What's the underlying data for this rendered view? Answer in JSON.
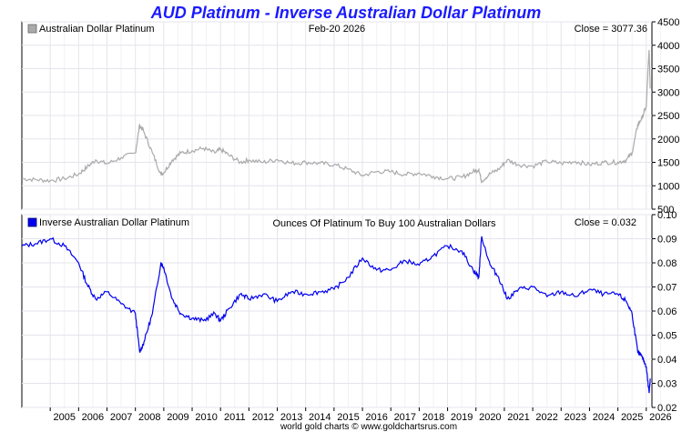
{
  "header": {
    "title": "AUD Platinum - Inverse Australian Dollar Platinum",
    "title_color": "#1a1aff"
  },
  "footer": {
    "credit": "world gold charts © www.goldchartsrus.com"
  },
  "chart_data": [
    {
      "type": "line",
      "legend": "Australian Dollar Platinum",
      "legend_placement": "top-left",
      "date_label": "Feb-20  2026",
      "close_label": "Close = 3077.36",
      "color": "#aaaaaa",
      "grid": true,
      "y_axis_side": "right",
      "ylim": [
        500,
        4500
      ],
      "y_ticks": [
        500,
        1000,
        1500,
        2000,
        2500,
        3000,
        3500,
        4000,
        4500
      ],
      "x_ticks": [
        "2005",
        "2006",
        "2007",
        "2008",
        "2009",
        "2010",
        "2011",
        "2012",
        "2013",
        "2014",
        "2015",
        "2016",
        "2017",
        "2018",
        "2019",
        "2020",
        "2021",
        "2022",
        "2023",
        "2024",
        "2025",
        "2026"
      ],
      "series": [
        {
          "x": [
            2004.0,
            2004.5,
            2005.0,
            2005.5,
            2006.0,
            2006.3,
            2006.6,
            2007.0,
            2007.5,
            2008.0,
            2008.15,
            2008.3,
            2008.6,
            2008.9,
            2009.0,
            2009.3,
            2009.6,
            2010.0,
            2010.4,
            2010.8,
            2011.0,
            2011.3,
            2011.7,
            2012.0,
            2012.5,
            2013.0,
            2013.5,
            2014.0,
            2014.5,
            2015.0,
            2015.5,
            2016.0,
            2016.5,
            2017.0,
            2017.5,
            2018.0,
            2018.5,
            2019.0,
            2019.5,
            2019.9,
            2020.1,
            2020.2,
            2020.5,
            2020.8,
            2021.1,
            2021.5,
            2022.0,
            2022.5,
            2023.0,
            2023.5,
            2024.0,
            2024.5,
            2025.0,
            2025.3,
            2025.5,
            2025.7,
            2025.85,
            2026.0,
            2026.1,
            2026.14
          ],
          "y": [
            1150,
            1130,
            1110,
            1150,
            1250,
            1400,
            1550,
            1470,
            1600,
            1700,
            2300,
            2150,
            1700,
            1250,
            1280,
            1550,
            1700,
            1750,
            1800,
            1700,
            1780,
            1650,
            1500,
            1550,
            1500,
            1560,
            1480,
            1500,
            1480,
            1450,
            1350,
            1220,
            1300,
            1300,
            1240,
            1270,
            1200,
            1150,
            1180,
            1300,
            1350,
            1100,
            1260,
            1350,
            1550,
            1450,
            1420,
            1520,
            1480,
            1520,
            1450,
            1500,
            1500,
            1550,
            1700,
            2300,
            2450,
            2700,
            3900,
            3077
          ]
        }
      ]
    },
    {
      "type": "line",
      "legend": "Inverse Australian Dollar Platinum",
      "legend_placement": "top-left",
      "title": "Ounces Of Platinum To Buy 100 Australian Dollars",
      "close_label": "Close = 0.032",
      "color": "#0000ee",
      "grid": true,
      "y_axis_side": "right",
      "ylim": [
        0.02,
        0.1
      ],
      "y_ticks": [
        0.02,
        0.03,
        0.04,
        0.05,
        0.06,
        0.07,
        0.08,
        0.09,
        0.1
      ],
      "x_ticks": [
        "2005",
        "2006",
        "2007",
        "2008",
        "2009",
        "2010",
        "2011",
        "2012",
        "2013",
        "2014",
        "2015",
        "2016",
        "2017",
        "2018",
        "2019",
        "2020",
        "2021",
        "2022",
        "2023",
        "2024",
        "2025",
        "2026"
      ],
      "series": [
        {
          "x": [
            2004.0,
            2004.5,
            2005.0,
            2005.5,
            2006.0,
            2006.3,
            2006.6,
            2007.0,
            2007.5,
            2008.0,
            2008.15,
            2008.3,
            2008.6,
            2008.9,
            2009.0,
            2009.3,
            2009.6,
            2010.0,
            2010.4,
            2010.8,
            2011.0,
            2011.3,
            2011.7,
            2012.0,
            2012.5,
            2013.0,
            2013.5,
            2014.0,
            2014.5,
            2015.0,
            2015.5,
            2016.0,
            2016.5,
            2017.0,
            2017.5,
            2018.0,
            2018.5,
            2019.0,
            2019.5,
            2019.9,
            2020.1,
            2020.2,
            2020.5,
            2020.8,
            2021.1,
            2021.5,
            2022.0,
            2022.5,
            2023.0,
            2023.5,
            2024.0,
            2024.5,
            2025.0,
            2025.3,
            2025.5,
            2025.7,
            2025.85,
            2026.0,
            2026.1,
            2026.14
          ],
          "y": [
            0.087,
            0.088,
            0.09,
            0.087,
            0.08,
            0.071,
            0.065,
            0.068,
            0.063,
            0.059,
            0.043,
            0.047,
            0.059,
            0.08,
            0.078,
            0.065,
            0.059,
            0.057,
            0.056,
            0.059,
            0.056,
            0.061,
            0.067,
            0.065,
            0.067,
            0.064,
            0.068,
            0.067,
            0.068,
            0.069,
            0.074,
            0.082,
            0.077,
            0.077,
            0.081,
            0.079,
            0.083,
            0.087,
            0.085,
            0.077,
            0.074,
            0.091,
            0.079,
            0.074,
            0.065,
            0.069,
            0.07,
            0.066,
            0.068,
            0.066,
            0.069,
            0.067,
            0.067,
            0.064,
            0.059,
            0.043,
            0.041,
            0.037,
            0.026,
            0.032
          ]
        }
      ]
    }
  ]
}
